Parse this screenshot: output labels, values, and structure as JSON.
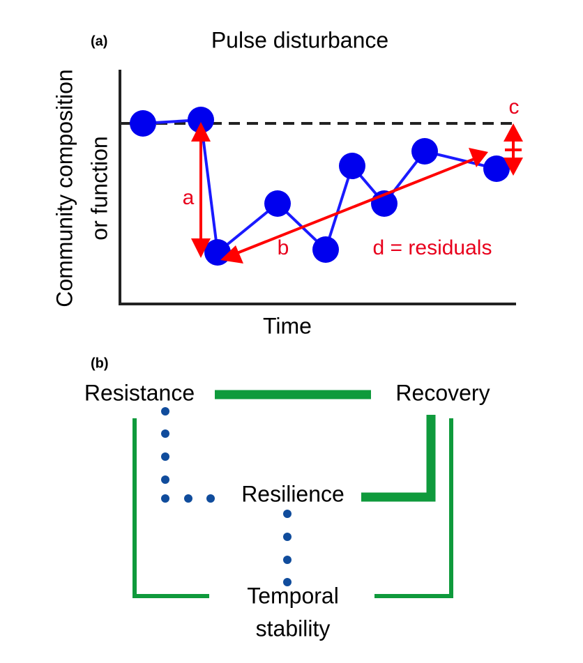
{
  "panel_a": {
    "label": "(a)",
    "title": "Pulse disturbance",
    "y_label": [
      "Community composition",
      "or function"
    ],
    "x_label": "Time",
    "annotations": {
      "a": "a",
      "b": "b",
      "c": "c",
      "d": "d = residuals"
    }
  },
  "panel_b": {
    "label": "(b)",
    "nodes": [
      {
        "label": "Resistance"
      },
      {
        "label": "Recovery"
      },
      {
        "label": "Resilience"
      },
      {
        "label": [
          "Temporal",
          "stability"
        ]
      }
    ]
  }
}
